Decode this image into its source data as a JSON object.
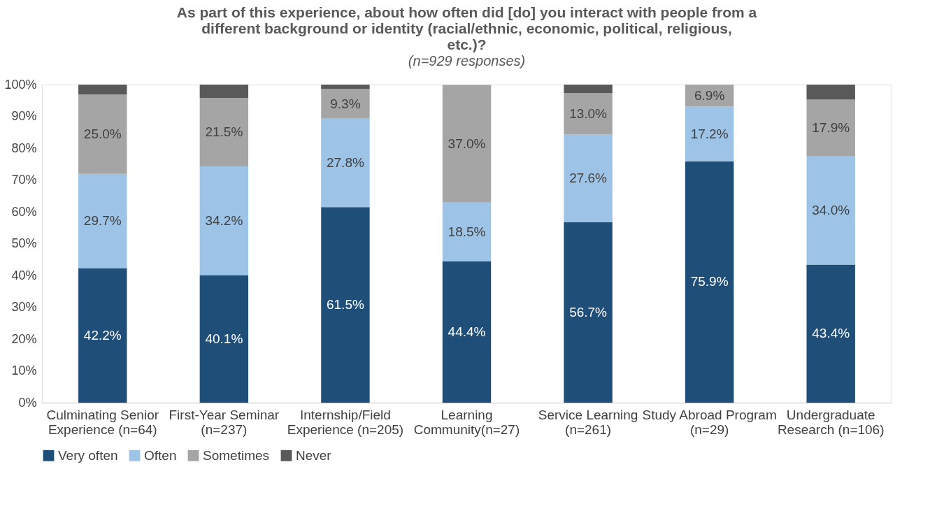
{
  "chart_data": {
    "type": "bar",
    "stacked": true,
    "title": "As part of this experience, about how often did [do] you interact with people from a different background or identity (racial/ethnic, economic, political, religious, etc.)?",
    "subtitle": "(n=929 responses)",
    "categories": [
      "Culminating Senior Experience (n=64)",
      "First-Year Seminar (n=237)",
      "Internship/Field Experience (n=205)",
      "Learning Community(n=27)",
      "Service Learning (n=261)",
      "Study Abroad Program (n=29)",
      "Undergraduate Research (n=106)"
    ],
    "series": [
      {
        "name": "Very often",
        "color": "#1f4e79",
        "values": [
          42.2,
          40.1,
          61.5,
          44.4,
          56.7,
          75.9,
          43.4
        ],
        "value_labels": [
          "42.2%",
          "40.1%",
          "61.5%",
          "44.4%",
          "56.7%",
          "75.9%",
          "43.4%"
        ]
      },
      {
        "name": "Often",
        "color": "#9dc3e6",
        "values": [
          29.7,
          34.2,
          27.8,
          18.5,
          27.6,
          17.2,
          34.0
        ],
        "value_labels": [
          "29.7%",
          "34.2%",
          "27.8%",
          "18.5%",
          "27.6%",
          "17.2%",
          "34.0%"
        ]
      },
      {
        "name": "Sometimes",
        "color": "#a5a5a5",
        "values": [
          25.0,
          21.5,
          9.3,
          37.0,
          13.0,
          6.9,
          17.9
        ],
        "value_labels": [
          "25.0%",
          "21.5%",
          "9.3%",
          "37.0%",
          "13.0%",
          "6.9%",
          "17.9%"
        ]
      },
      {
        "name": "Never",
        "color": "#595959",
        "values": [
          3.1,
          4.2,
          1.4,
          null,
          2.7,
          null,
          4.7
        ]
      }
    ],
    "ylim": [
      0,
      100
    ],
    "yticks": [
      {
        "value": 0,
        "label": "0%"
      },
      {
        "value": 10,
        "label": "10%"
      },
      {
        "value": 20,
        "label": "20%"
      },
      {
        "value": 30,
        "label": "30%"
      },
      {
        "value": 40,
        "label": "40%"
      },
      {
        "value": 50,
        "label": "50%"
      },
      {
        "value": 60,
        "label": "60%"
      },
      {
        "value": 70,
        "label": "70%"
      },
      {
        "value": 80,
        "label": "80%"
      },
      {
        "value": 90,
        "label": "90%"
      },
      {
        "value": 100,
        "label": "100%"
      }
    ],
    "grid": false,
    "legend": "bottom"
  }
}
